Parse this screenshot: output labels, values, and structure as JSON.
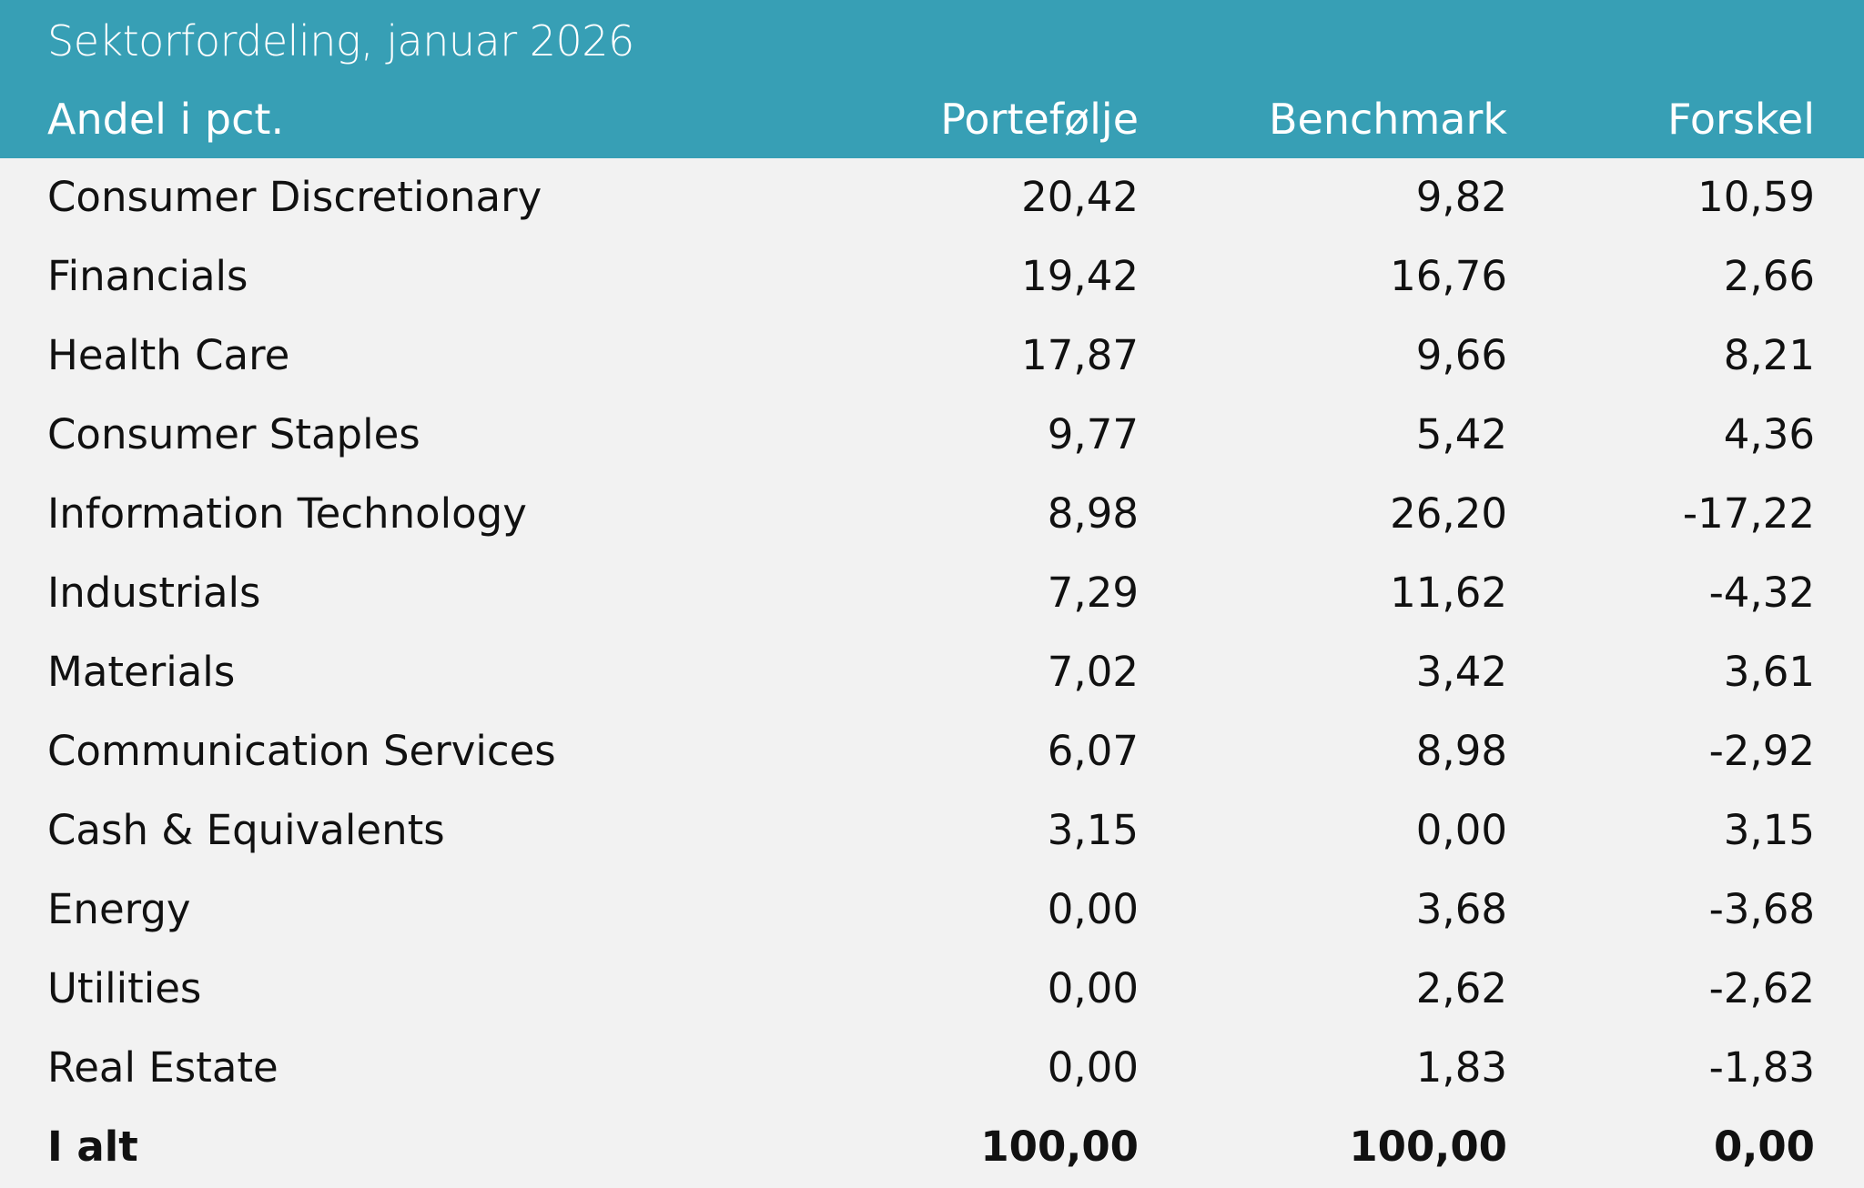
{
  "title": "Sektorfordeling, januar 2026",
  "columns": [
    "Andel i pct.",
    "Portefølje",
    "Benchmark",
    "Forskel"
  ],
  "rows": [
    [
      "Consumer Discretionary",
      "20,42",
      "9,82",
      "10,59"
    ],
    [
      "Financials",
      "19,42",
      "16,76",
      "2,66"
    ],
    [
      "Health Care",
      "17,87",
      "9,66",
      "8,21"
    ],
    [
      "Consumer Staples",
      "9,77",
      "5,42",
      "4,36"
    ],
    [
      "Information Technology",
      "8,98",
      "26,20",
      "-17,22"
    ],
    [
      "Industrials",
      "7,29",
      "11,62",
      "-4,32"
    ],
    [
      "Materials",
      "7,02",
      "3,42",
      "3,61"
    ],
    [
      "Communication Services",
      "6,07",
      "8,98",
      "-2,92"
    ],
    [
      "Cash & Equivalents",
      "3,15",
      "0,00",
      "3,15"
    ],
    [
      "Energy",
      "0,00",
      "3,68",
      "-3,68"
    ],
    [
      "Utilities",
      "0,00",
      "2,62",
      "-2,62"
    ],
    [
      "Real Estate",
      "0,00",
      "1,83",
      "-1,83"
    ]
  ],
  "total": [
    "I alt",
    "100,00",
    "100,00",
    "0,00"
  ],
  "colors": {
    "header": "#379fb5",
    "background": "#f2f2f2"
  }
}
